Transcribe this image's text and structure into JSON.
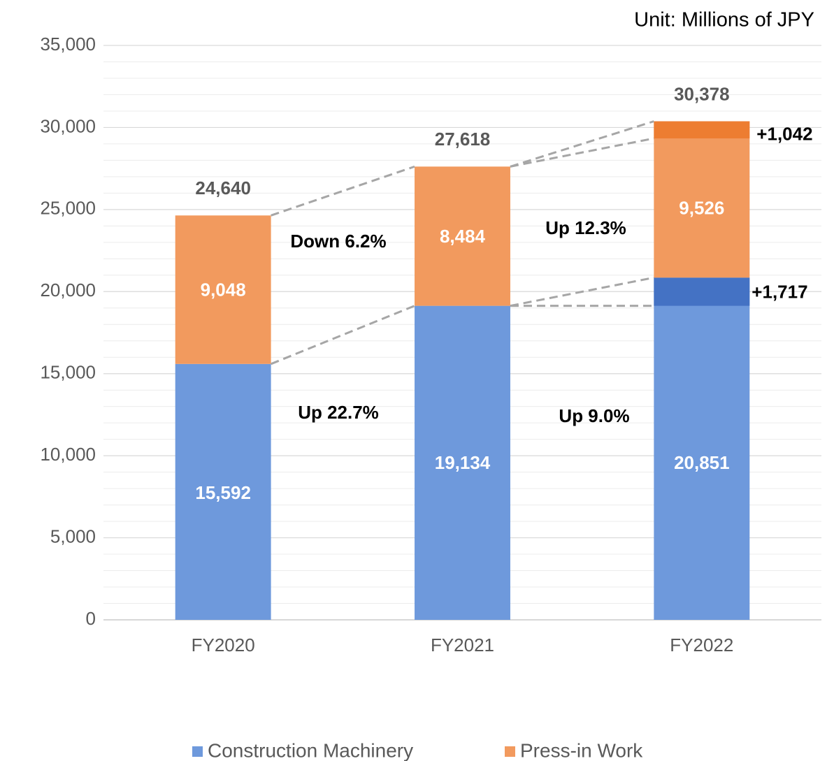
{
  "chart_data": {
    "type": "stacked_bar",
    "unit_note": "Unit: Millions of JPY",
    "categories": [
      "FY2020",
      "FY2021",
      "FY2022"
    ],
    "series": [
      {
        "name": "Construction Machinery",
        "color": "#6e99dc",
        "values": [
          15592,
          19134,
          20851
        ],
        "value_labels": [
          "15,592",
          "19,134",
          "20,851"
        ],
        "increments": [
          null,
          null,
          1717
        ],
        "increment_labels": [
          null,
          null,
          "+1,717"
        ],
        "increment_color": "#4472c4"
      },
      {
        "name": "Press-in Work",
        "color": "#f29a5e",
        "values": [
          9048,
          8484,
          9526
        ],
        "value_labels": [
          "9,048",
          "8,484",
          "9,526"
        ],
        "increments": [
          null,
          null,
          1042
        ],
        "increment_labels": [
          null,
          null,
          "+1,042"
        ],
        "increment_color": "#ed7d31"
      }
    ],
    "totals": [
      24640,
      27618,
      30378
    ],
    "total_labels": [
      "24,640",
      "27,618",
      "30,378"
    ],
    "annotations": [
      "Down 6.2%",
      "Up 22.7%",
      "Up 12.3%",
      "Up 9.0%"
    ],
    "ylim": [
      0,
      35000
    ],
    "yticks": [
      0,
      {
        "value": 5000,
        "label": "5,000"
      },
      {
        "value": 10000,
        "label": "10,000"
      },
      {
        "value": 15000,
        "label": "15,000"
      },
      {
        "value": 20000,
        "label": "20,000"
      },
      {
        "value": 25000,
        "label": "25,000"
      },
      {
        "value": 30000,
        "label": "30,000"
      },
      {
        "value": 35000,
        "label": "35,000"
      }
    ],
    "grid": true,
    "legend": "bottom"
  }
}
